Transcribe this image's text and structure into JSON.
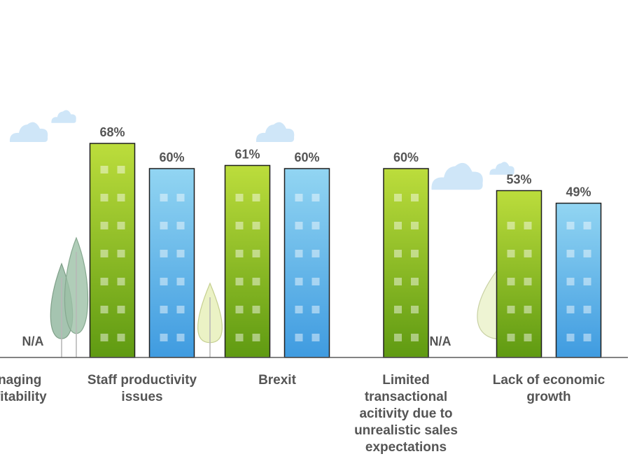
{
  "chart_data": {
    "type": "bar",
    "categories": [
      "Managing\nprofitability",
      "Staff productivity\nissues",
      "Brexit",
      "Limited\ntransactional\nacitivity due to\nunrealistic sales\nexpectations",
      "Lack of economic\ngrowth"
    ],
    "series": [
      {
        "color": "#8fc21d",
        "values": [
          null,
          68,
          61,
          60,
          53
        ]
      },
      {
        "color": "#4aa6e3",
        "values": [
          null,
          60,
          60,
          null,
          49
        ]
      }
    ],
    "value_suffix": "%",
    "missing_label": "N/A",
    "ylim": [
      0,
      100
    ],
    "grid": false,
    "legend": "none"
  },
  "decorations": {
    "clouds": [
      "cloud-icon",
      "cloud-icon",
      "cloud-icon",
      "cloud-icon",
      "cloud-icon"
    ],
    "trees": [
      "tree-icon",
      "tree-icon",
      "tree-icon",
      "tree-icon"
    ]
  },
  "colors": {
    "label_text": "#555555",
    "baseline": "#5a5a5a",
    "cloud": "#cfe6f8",
    "green_dark": "#5f9a12",
    "green_light": "#b9dc3a",
    "blue_dark": "#3f9be0",
    "blue_light": "#8fd3f2",
    "bar_outline": "#1e1e1e"
  }
}
